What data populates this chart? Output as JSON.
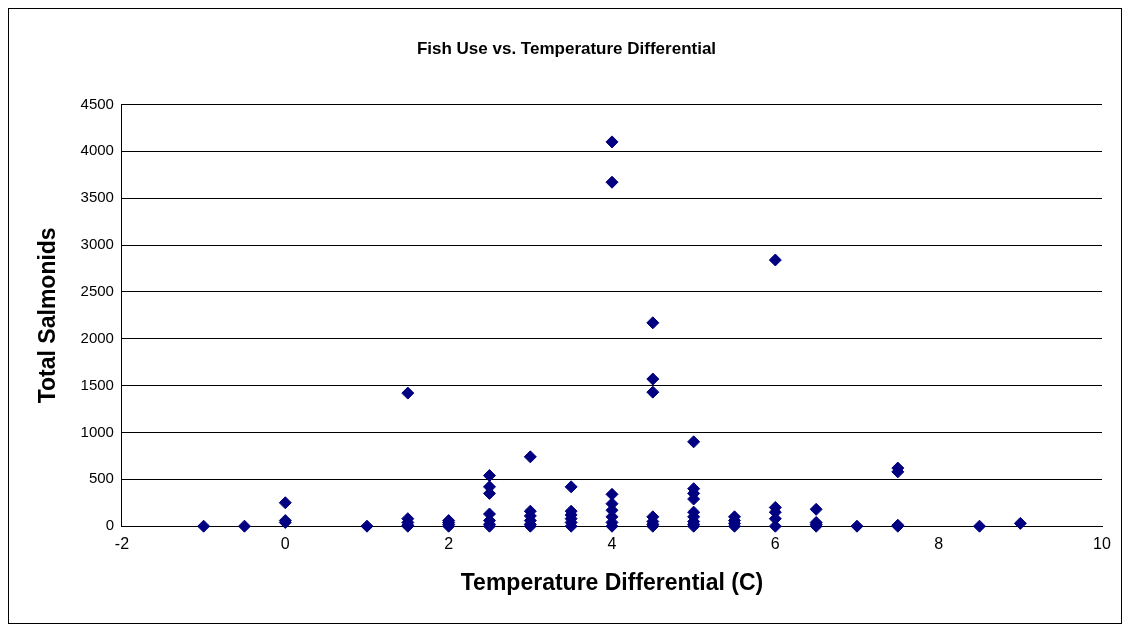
{
  "chart_data": {
    "type": "scatter",
    "title": "Fish Use vs. Temperature Differential",
    "xlabel": "Temperature Differential (C)",
    "ylabel": "Total Salmonids",
    "series": [
      {
        "color": "#000080",
        "x": [
          -1,
          -0.5,
          0,
          0,
          0,
          1,
          1.5,
          1.5,
          1.5,
          1.5,
          1.5,
          2,
          2,
          2,
          2,
          2.5,
          2.5,
          2.5,
          2.5,
          2.5,
          2.5,
          2.5,
          3,
          3,
          3,
          3,
          3,
          3,
          3.5,
          3.5,
          3.5,
          3.5,
          3.5,
          3.5,
          4,
          4,
          4,
          4,
          4,
          4,
          4,
          4,
          4.5,
          4.5,
          4.5,
          4.5,
          4.5,
          4.5,
          4.5,
          5,
          5,
          5,
          5,
          5,
          5,
          5,
          5,
          5,
          5.5,
          5.5,
          5.5,
          5.5,
          6,
          6,
          6,
          6,
          6,
          6.5,
          6.5,
          6.5,
          6.5,
          7,
          7.5,
          7.5,
          7.5,
          7.5,
          8.5,
          9
        ],
        "values": [
          0,
          0,
          250,
          60,
          40,
          0,
          1420,
          80,
          40,
          10,
          0,
          60,
          40,
          20,
          0,
          540,
          420,
          350,
          130,
          60,
          20,
          0,
          740,
          160,
          110,
          60,
          20,
          0,
          420,
          160,
          120,
          80,
          40,
          0,
          4100,
          3670,
          340,
          240,
          170,
          100,
          40,
          0,
          2170,
          1570,
          1430,
          100,
          50,
          20,
          0,
          900,
          400,
          350,
          290,
          150,
          100,
          50,
          20,
          0,
          100,
          60,
          30,
          0,
          2840,
          200,
          150,
          80,
          0,
          180,
          40,
          20,
          0,
          0,
          620,
          580,
          10,
          0,
          0,
          30
        ]
      }
    ],
    "xlim": [
      -2,
      10
    ],
    "xticks": [
      -2,
      0,
      2,
      4,
      6,
      8,
      10
    ],
    "ylim": [
      0,
      4500
    ],
    "yticks": [
      0,
      500,
      1000,
      1500,
      2000,
      2500,
      3000,
      3500,
      4000,
      4500
    ],
    "grid": "y",
    "legend": false,
    "marker": "diamond"
  }
}
